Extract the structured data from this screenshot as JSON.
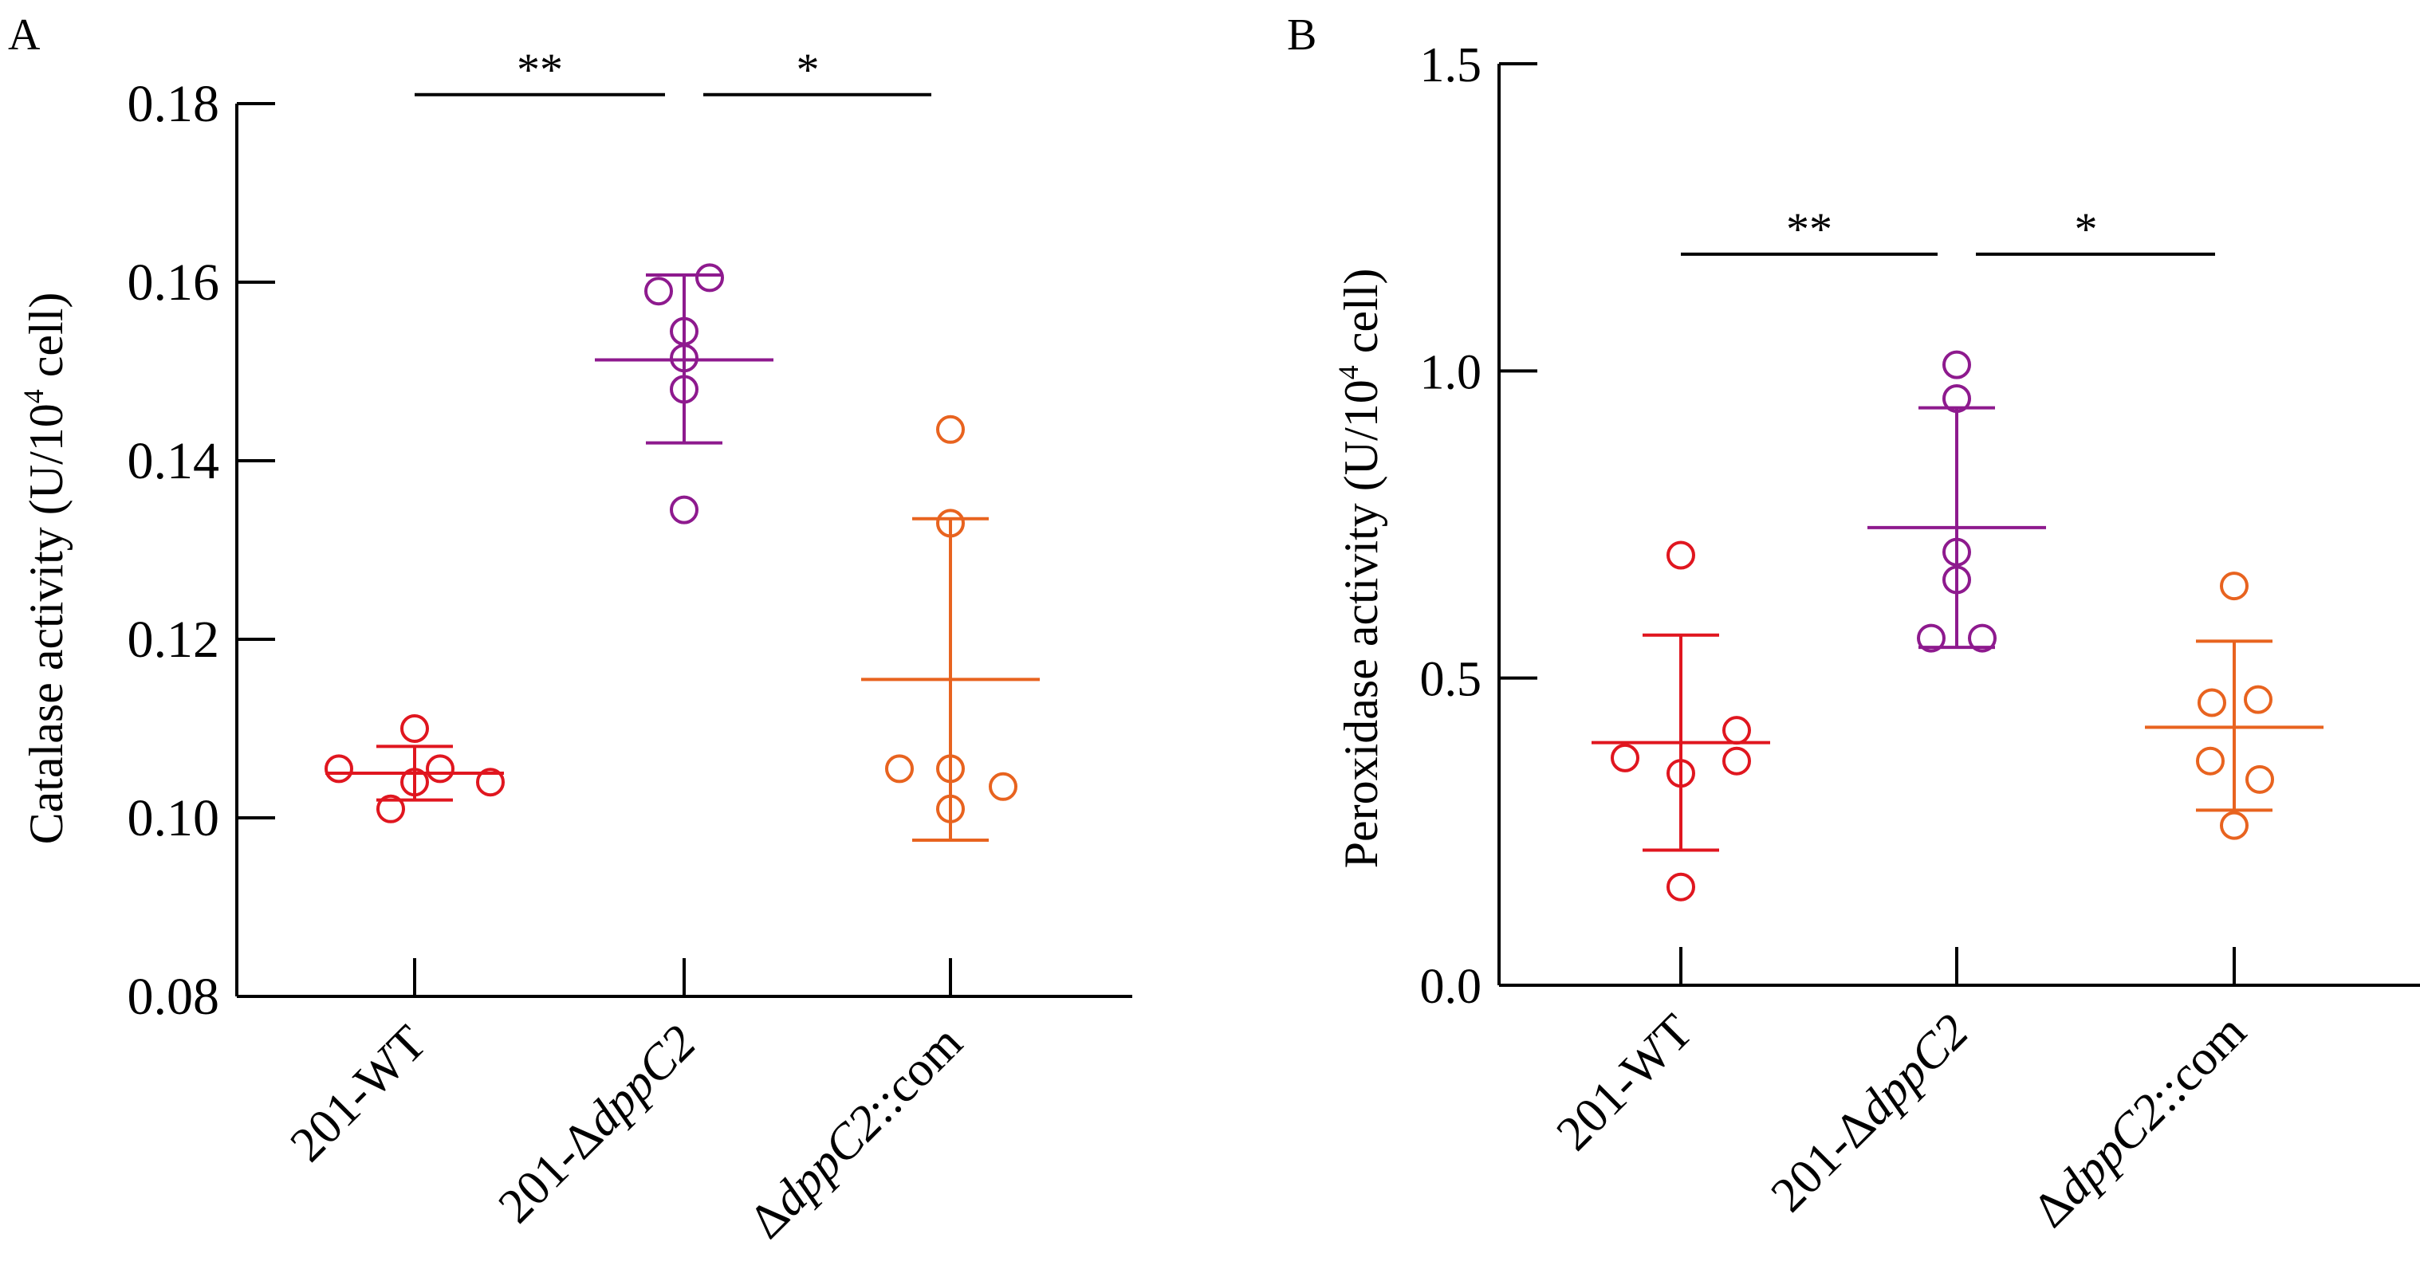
{
  "chart_data": [
    {
      "panel": "A",
      "type": "scatter",
      "ylabel": "Catalase activity (U/10",
      "ylabel_sup": "4",
      "ylabel_end": " cell)",
      "ylim": [
        0.08,
        0.18
      ],
      "yticks": [
        "0.08",
        "0.10",
        "0.12",
        "0.14",
        "0.16",
        "0.18"
      ],
      "categories": [
        {
          "pre": "201-WT",
          "ital": "",
          "post": ""
        },
        {
          "pre": "201-Δ",
          "ital": "dppC2",
          "post": ""
        },
        {
          "pre": "Δ",
          "ital": "dppC2",
          "post": "::com"
        }
      ],
      "series": [
        {
          "points": [
            0.1055,
            0.104,
            0.1055,
            0.11,
            0.101,
            0.104
          ],
          "mean": 0.105,
          "sd_low": 0.102,
          "sd_high": 0.108,
          "color": "#e0161f"
        },
        {
          "points": [
            0.159,
            0.1605,
            0.1545,
            0.1515,
            0.148,
            0.1345
          ],
          "mean": 0.1513,
          "sd_low": 0.142,
          "sd_high": 0.1608,
          "color": "#8e1a8e"
        },
        {
          "points": [
            0.1055,
            0.1035,
            0.1055,
            0.1435,
            0.133,
            0.101
          ],
          "mean": 0.1155,
          "sd_low": 0.0975,
          "sd_high": 0.1335,
          "color": "#e8631f"
        }
      ],
      "significance": [
        {
          "from": 0,
          "to": 1,
          "label": "**",
          "y": 0.181
        },
        {
          "from": 1,
          "to": 2,
          "label": "*",
          "y": 0.181
        }
      ]
    },
    {
      "panel": "B",
      "type": "scatter",
      "ylabel": "Peroxidase activity (U/10",
      "ylabel_sup": "4",
      "ylabel_end": " cell)",
      "ylim": [
        0.0,
        1.5
      ],
      "yticks": [
        "0.0",
        "0.5",
        "1.0",
        "1.5"
      ],
      "categories": [
        {
          "pre": "201-WT",
          "ital": "",
          "post": ""
        },
        {
          "pre": "201-Δ",
          "ital": "dppC2",
          "post": ""
        },
        {
          "pre": "Δ",
          "ital": "dppC2",
          "post": "::com"
        }
      ],
      "series": [
        {
          "points": [
            0.37,
            0.345,
            0.415,
            0.365,
            0.7,
            0.16
          ],
          "mean": 0.395,
          "sd_low": 0.22,
          "sd_high": 0.57,
          "color": "#e0161f"
        },
        {
          "points": [
            1.01,
            0.955,
            0.705,
            0.66,
            0.565,
            0.565
          ],
          "mean": 0.745,
          "sd_low": 0.55,
          "sd_high": 0.94,
          "color": "#8e1a8e"
        },
        {
          "points": [
            0.65,
            0.465,
            0.46,
            0.365,
            0.335,
            0.26
          ],
          "mean": 0.42,
          "sd_low": 0.285,
          "sd_high": 0.56,
          "color": "#e8631f"
        }
      ],
      "significance": [
        {
          "from": 0,
          "to": 1,
          "label": "**",
          "y": 1.19
        },
        {
          "from": 1,
          "to": 2,
          "label": "*",
          "y": 1.19
        }
      ]
    }
  ]
}
